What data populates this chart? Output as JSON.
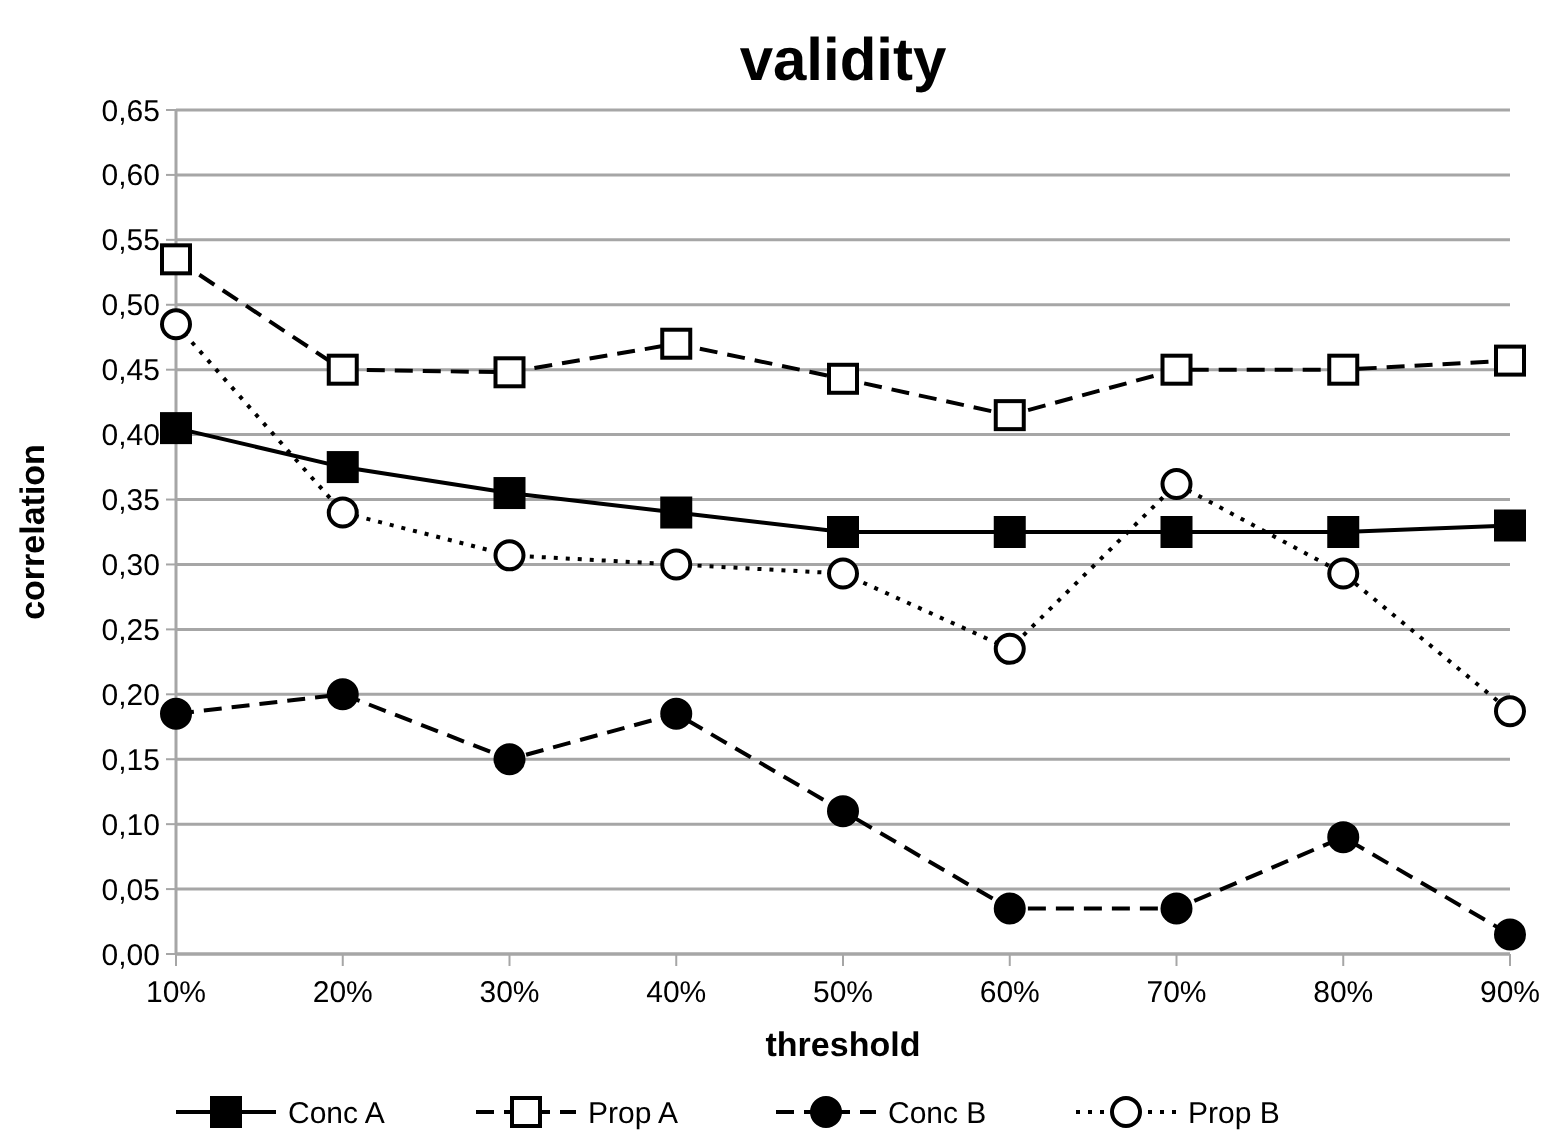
{
  "chart_data": {
    "type": "line",
    "title": "validity",
    "xlabel": "threshold",
    "ylabel": "correlation",
    "categories": [
      "10%",
      "20%",
      "30%",
      "40%",
      "50%",
      "60%",
      "70%",
      "80%",
      "90%"
    ],
    "series": [
      {
        "name": "Conc A",
        "color": "#000000",
        "marker": "square",
        "line_style": "solid",
        "values": [
          0.405,
          0.375,
          0.355,
          0.34,
          0.325,
          0.325,
          0.325,
          0.325,
          0.33
        ]
      },
      {
        "name": "Prop A",
        "color": "#000000",
        "marker": "square",
        "line_style": "dashed",
        "values": [
          0.535,
          0.45,
          0.448,
          0.47,
          0.443,
          0.415,
          0.45,
          0.45,
          0.457
        ]
      },
      {
        "name": "Conc B",
        "color": "#000000",
        "marker": "circle",
        "line_style": "dashed",
        "values": [
          0.185,
          0.2,
          0.15,
          0.185,
          0.11,
          0.035,
          0.035,
          0.09,
          0.015
        ]
      },
      {
        "name": "Prop B",
        "color": "#000000",
        "marker": "circle",
        "line_style": "dotted",
        "values": [
          0.485,
          0.34,
          0.307,
          0.3,
          0.293,
          0.235,
          0.362,
          0.293,
          0.187
        ]
      }
    ],
    "ylim": [
      0,
      0.65
    ],
    "yticks": [
      {
        "value": 0,
        "label": "0,00"
      },
      {
        "value": 0.05,
        "label": "0,05"
      },
      {
        "value": 0.1,
        "label": "0,10"
      },
      {
        "value": 0.15,
        "label": "0,15"
      },
      {
        "value": 0.2,
        "label": "0,20"
      },
      {
        "value": 0.25,
        "label": "0,25"
      },
      {
        "value": 0.3,
        "label": "0,30"
      },
      {
        "value": 0.35,
        "label": "0,35"
      },
      {
        "value": 0.4,
        "label": "0,40"
      },
      {
        "value": 0.45,
        "label": "0,45"
      },
      {
        "value": 0.5,
        "label": "0,50"
      },
      {
        "value": 0.55,
        "label": "0,55"
      },
      {
        "value": 0.6,
        "label": "0,60"
      },
      {
        "value": 0.65,
        "label": "0,65"
      }
    ],
    "grid": "y",
    "legend": "bottom"
  }
}
